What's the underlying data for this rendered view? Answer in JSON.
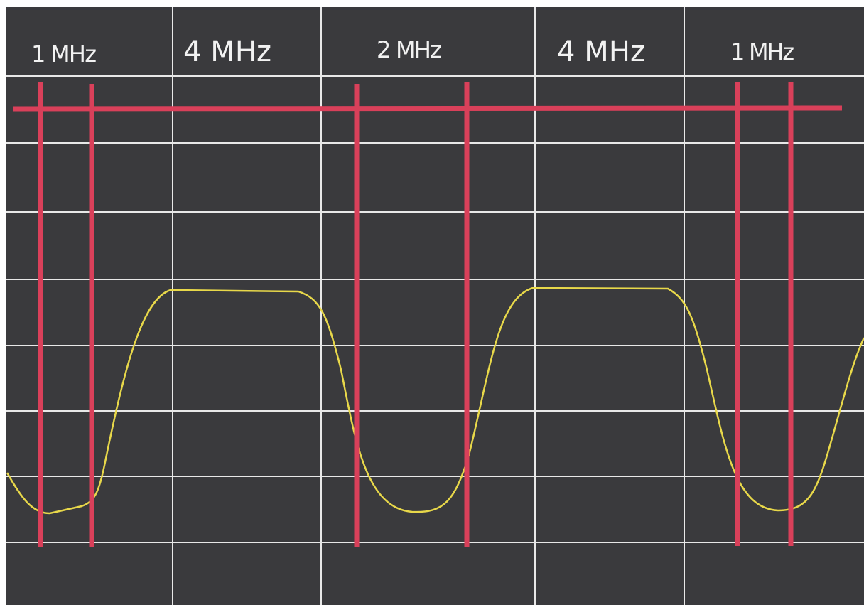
{
  "labels": [
    "1 MHz",
    "4 MHz",
    "2 MHz",
    "4 MHz",
    "1 MHz"
  ]
}
